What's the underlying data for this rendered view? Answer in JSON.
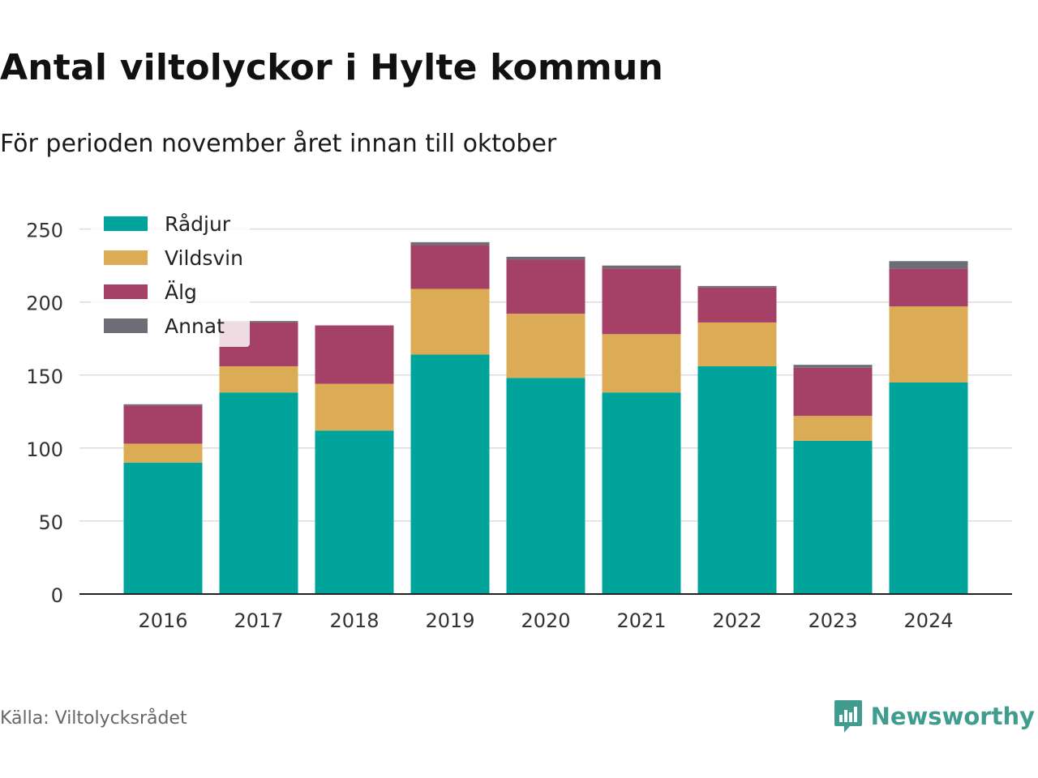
{
  "title": "Antal viltolyckor i Hylte kommun",
  "subtitle": "För perioden november året innan till oktober",
  "source": "Källa: Viltolycksrådet",
  "brand": "Newsworthy",
  "colors": {
    "radjur": "#00a49a",
    "vildsvin": "#dcab56",
    "alg": "#a54067",
    "annat": "#6d6d75",
    "brand": "#3f9c8f"
  },
  "chart_data": {
    "type": "bar",
    "stacked": true,
    "categories": [
      "2016",
      "2017",
      "2018",
      "2019",
      "2020",
      "2021",
      "2022",
      "2023",
      "2024"
    ],
    "series": [
      {
        "name": "Rådjur",
        "values": [
          90,
          138,
          112,
          164,
          148,
          138,
          156,
          105,
          145
        ]
      },
      {
        "name": "Vildsvin",
        "values": [
          13,
          18,
          32,
          45,
          44,
          40,
          30,
          17,
          52
        ]
      },
      {
        "name": "Älg",
        "values": [
          26,
          30,
          40,
          30,
          37,
          45,
          24,
          33,
          26
        ]
      },
      {
        "name": "Annat",
        "values": [
          1,
          1,
          0,
          2,
          2,
          2,
          1,
          2,
          5
        ]
      }
    ],
    "yticks": [
      0,
      50,
      100,
      150,
      200,
      250
    ],
    "ylim": [
      0,
      262
    ],
    "grid": true,
    "legend_position": "top-left"
  }
}
